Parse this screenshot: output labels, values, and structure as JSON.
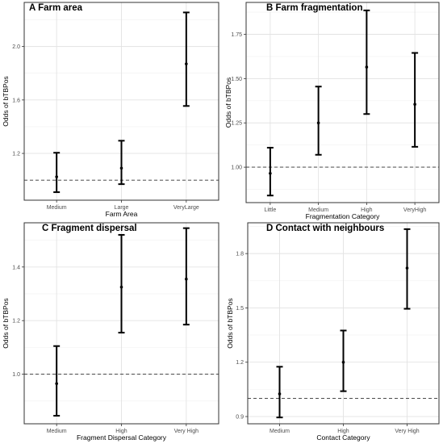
{
  "chart_data": [
    {
      "type": "errorbar",
      "title": "A Farm area",
      "xlabel": "Farm Area",
      "ylabel": "Odds of bTBPos",
      "categories": [
        "Medium",
        "Large",
        "VeryLarge"
      ],
      "estimates": [
        1.025,
        1.09,
        1.87
      ],
      "lower": [
        0.91,
        0.97,
        1.555
      ],
      "upper": [
        1.205,
        1.295,
        2.255
      ],
      "reference_line": 1.0,
      "yticks": [
        "1.2",
        "1.6",
        "2.0"
      ],
      "ylim": [
        0.85,
        2.33
      ],
      "grid": true
    },
    {
      "type": "errorbar",
      "title": "B Farm fragmentation",
      "xlabel": "Fragmentation Category",
      "ylabel": "Odds of bTBPos",
      "categories": [
        "Little",
        "Medium",
        "High",
        "VeryHigh"
      ],
      "estimates": [
        0.965,
        1.25,
        1.565,
        1.355
      ],
      "lower": [
        0.84,
        1.07,
        1.3,
        1.115
      ],
      "upper": [
        1.11,
        1.455,
        1.885,
        1.645
      ],
      "reference_line": 1.0,
      "yticks": [
        "1.00",
        "1.25",
        "1.50",
        "1.75"
      ],
      "ylim": [
        0.8,
        1.93
      ],
      "grid": true
    },
    {
      "type": "errorbar",
      "title": "C Fragment dispersal",
      "xlabel": "Fragment Dispersal Category",
      "ylabel": "Odds of bTBPos",
      "categories": [
        "Medium",
        "High",
        "Very High"
      ],
      "estimates": [
        0.965,
        1.325,
        1.355
      ],
      "lower": [
        0.845,
        1.155,
        1.185
      ],
      "upper": [
        1.105,
        1.52,
        1.545
      ],
      "reference_line": 1.0,
      "yticks": [
        "1.0",
        "1.2",
        "1.4"
      ],
      "ylim": [
        0.815,
        1.565
      ],
      "grid": true
    },
    {
      "type": "errorbar",
      "title": "D Contact with neighbours",
      "xlabel": "Contact Category",
      "ylabel": "Odds of bTBPos",
      "categories": [
        "Medium",
        "High",
        "Very High"
      ],
      "estimates": [
        1.025,
        1.2,
        1.72
      ],
      "lower": [
        0.895,
        1.04,
        1.495
      ],
      "upper": [
        1.175,
        1.375,
        1.935
      ],
      "reference_line": 1.0,
      "yticks": [
        "0.9",
        "1.2",
        "1.5",
        "1.8"
      ],
      "ylim": [
        0.86,
        1.97
      ],
      "grid": true
    }
  ]
}
